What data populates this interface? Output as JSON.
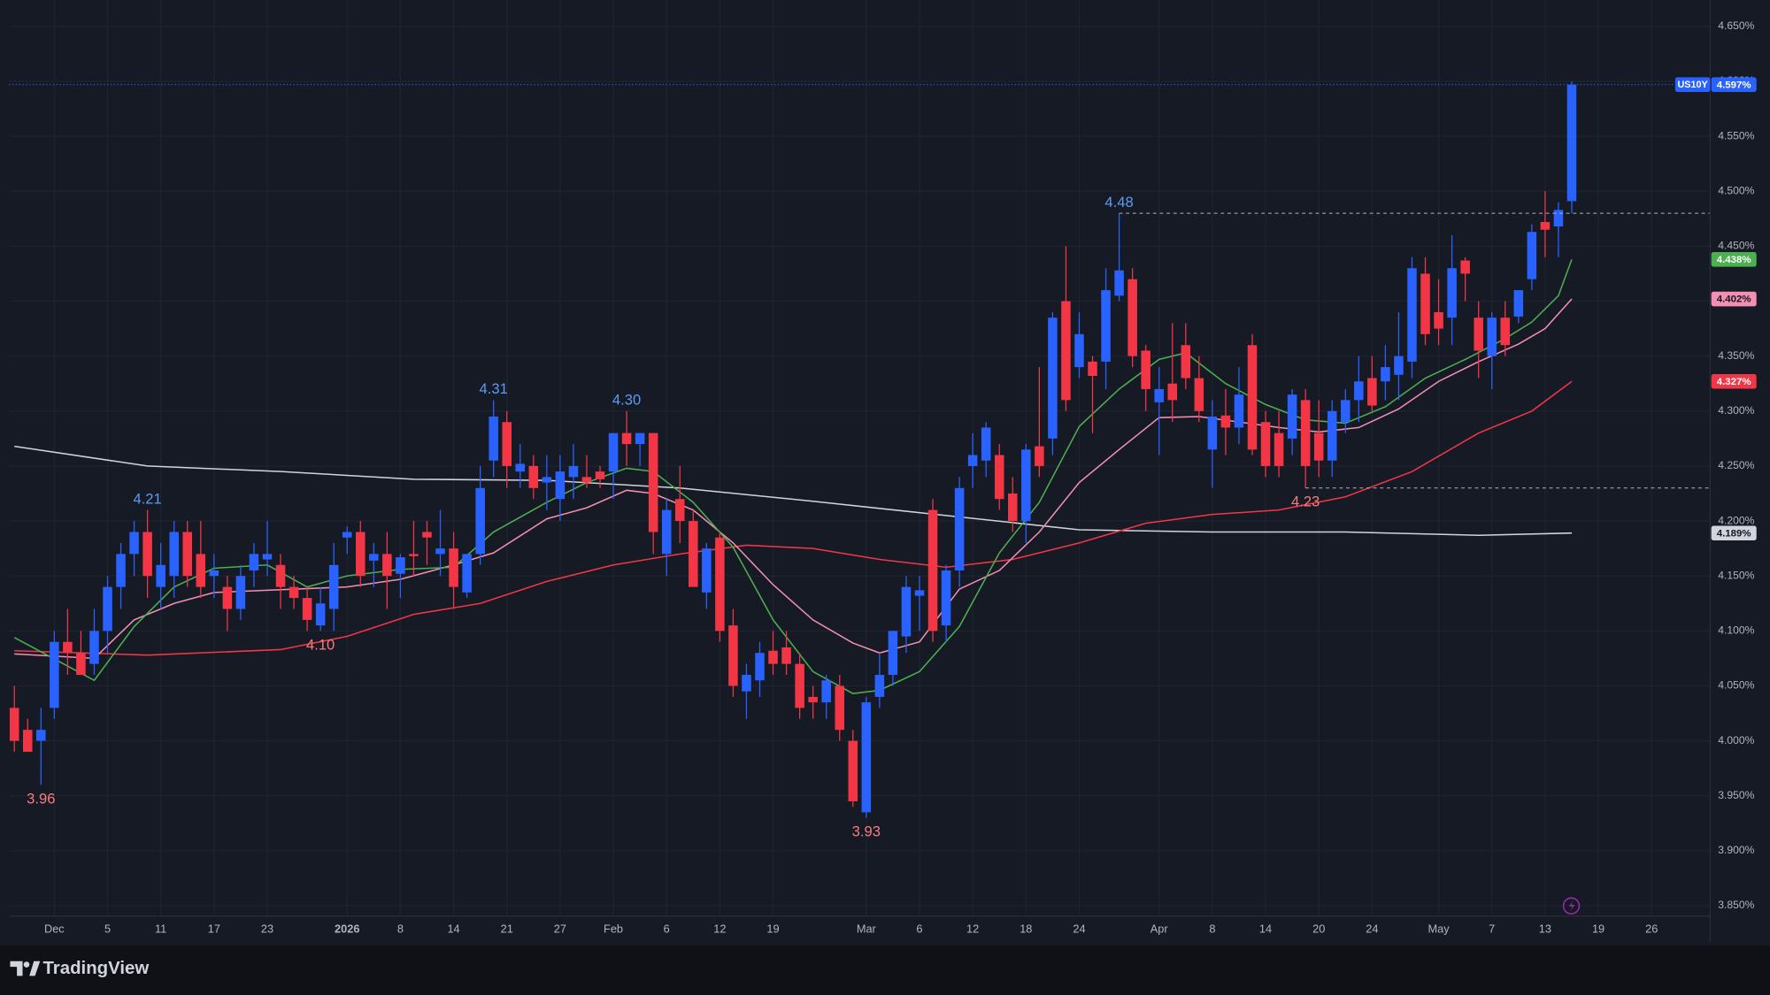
{
  "chart_data": {
    "type": "candlestick",
    "symbol": "US10Y",
    "up_color": "#2962ff",
    "down_color": "#f23645",
    "grid": true,
    "xlim": [
      -0.4,
      127.4
    ],
    "ylim": [
      3.817,
      4.674
    ],
    "xticks": [
      {
        "value": 3,
        "label": "Dec"
      },
      {
        "value": 7,
        "label": "5"
      },
      {
        "value": 11,
        "label": "11"
      },
      {
        "value": 15,
        "label": "17"
      },
      {
        "value": 19,
        "label": "23"
      },
      {
        "value": 25,
        "label": "2026"
      },
      {
        "value": 29,
        "label": "8"
      },
      {
        "value": 33,
        "label": "14"
      },
      {
        "value": 37,
        "label": "21"
      },
      {
        "value": 41,
        "label": "27"
      },
      {
        "value": 45,
        "label": "Feb"
      },
      {
        "value": 49,
        "label": "6"
      },
      {
        "value": 53,
        "label": "12"
      },
      {
        "value": 57,
        "label": "19"
      },
      {
        "value": 64,
        "label": "Mar"
      },
      {
        "value": 68,
        "label": "6"
      },
      {
        "value": 72,
        "label": "12"
      },
      {
        "value": 76,
        "label": "18"
      },
      {
        "value": 80,
        "label": "24"
      },
      {
        "value": 86,
        "label": "Apr"
      },
      {
        "value": 90,
        "label": "8"
      },
      {
        "value": 94,
        "label": "14"
      },
      {
        "value": 98,
        "label": "20"
      },
      {
        "value": 102,
        "label": "24"
      },
      {
        "value": 107,
        "label": "May"
      },
      {
        "value": 111,
        "label": "7"
      },
      {
        "value": 115,
        "label": "13"
      },
      {
        "value": 119,
        "label": "19"
      },
      {
        "value": 123,
        "label": "26"
      }
    ],
    "yticks": [
      {
        "value": 3.85,
        "label": "3.850%"
      },
      {
        "value": 3.9,
        "label": "3.900%"
      },
      {
        "value": 3.95,
        "label": "3.950%"
      },
      {
        "value": 4.0,
        "label": "4.000%"
      },
      {
        "value": 4.05,
        "label": "4.050%"
      },
      {
        "value": 4.1,
        "label": "4.100%"
      },
      {
        "value": 4.15,
        "label": "4.150%"
      },
      {
        "value": 4.2,
        "label": "4.200%"
      },
      {
        "value": 4.25,
        "label": "4.250%"
      },
      {
        "value": 4.3,
        "label": "4.300%"
      },
      {
        "value": 4.35,
        "label": "4.350%"
      },
      {
        "value": 4.4,
        "label": "4.400%"
      },
      {
        "value": 4.45,
        "label": "4.450%"
      },
      {
        "value": 4.5,
        "label": "4.500%"
      },
      {
        "value": 4.55,
        "label": "4.550%"
      },
      {
        "value": 4.6,
        "label": "4.600%"
      },
      {
        "value": 4.65,
        "label": "4.650%"
      }
    ],
    "open": [
      4.03,
      4.01,
      4.0,
      4.03,
      4.09,
      4.08,
      4.07,
      4.1,
      4.14,
      4.17,
      4.19,
      4.14,
      4.15,
      4.19,
      4.17,
      4.15,
      4.14,
      4.12,
      4.155,
      4.165,
      4.16,
      4.14,
      4.13,
      4.105,
      4.12,
      4.185,
      4.19,
      4.164,
      4.17,
      4.152,
      4.17,
      4.19,
      4.17,
      4.175,
      4.135,
      4.17,
      4.255,
      4.29,
      4.245,
      4.25,
      4.235,
      4.22,
      4.24,
      4.24,
      4.245,
      4.245,
      4.28,
      4.27,
      4.28,
      4.17,
      4.22,
      4.2,
      4.135,
      4.185,
      4.105,
      4.045,
      4.055,
      4.082,
      4.085,
      4.07,
      4.04,
      4.035,
      4.05,
      4.0,
      3.935,
      4.04,
      4.06,
      4.095,
      4.132,
      4.21,
      4.105,
      4.155,
      4.25,
      4.255,
      4.26,
      4.225,
      4.2,
      4.268,
      4.275,
      4.4,
      4.34,
      4.345,
      4.345,
      4.405,
      4.42,
      4.355,
      4.308,
      4.325,
      4.36,
      4.33,
      4.265,
      4.296,
      4.285,
      4.36,
      4.29,
      4.28,
      4.275,
      4.31,
      4.28,
      4.255,
      4.29,
      4.31,
      4.33,
      4.327,
      4.333,
      4.345,
      4.425,
      4.39,
      4.385,
      4.437,
      4.385,
      4.35,
      4.385,
      4.386,
      4.42,
      4.472,
      4.468,
      4.491
    ],
    "high": [
      4.05,
      4.02,
      4.03,
      4.1,
      4.12,
      4.1,
      4.12,
      4.15,
      4.18,
      4.2,
      4.21,
      4.18,
      4.2,
      4.2,
      4.2,
      4.17,
      4.15,
      4.16,
      4.18,
      4.2,
      4.17,
      4.15,
      4.14,
      4.14,
      4.18,
      4.195,
      4.2,
      4.18,
      4.19,
      4.17,
      4.2,
      4.2,
      4.21,
      4.19,
      4.17,
      4.25,
      4.31,
      4.3,
      4.27,
      4.26,
      4.26,
      4.26,
      4.27,
      4.26,
      4.25,
      4.28,
      4.3,
      4.28,
      4.28,
      4.22,
      4.25,
      4.21,
      4.18,
      4.19,
      4.12,
      4.07,
      4.09,
      4.1,
      4.1,
      4.08,
      4.05,
      4.06,
      4.06,
      4.01,
      4.04,
      4.08,
      4.1,
      4.15,
      4.15,
      4.22,
      4.16,
      4.24,
      4.28,
      4.29,
      4.27,
      4.24,
      4.27,
      4.34,
      4.39,
      4.45,
      4.39,
      4.35,
      4.43,
      4.48,
      4.43,
      4.36,
      4.34,
      4.38,
      4.38,
      4.35,
      4.31,
      4.32,
      4.34,
      4.37,
      4.3,
      4.3,
      4.32,
      4.32,
      4.31,
      4.31,
      4.32,
      4.35,
      4.35,
      4.36,
      4.39,
      4.44,
      4.44,
      4.42,
      4.46,
      4.44,
      4.4,
      4.39,
      4.4,
      4.41,
      4.47,
      4.5,
      4.49,
      4.6
    ],
    "low": [
      3.99,
      3.99,
      3.96,
      4.02,
      4.06,
      4.06,
      4.06,
      4.08,
      4.12,
      4.15,
      4.13,
      4.12,
      4.13,
      4.14,
      4.13,
      4.13,
      4.1,
      4.11,
      4.14,
      4.15,
      4.12,
      4.12,
      4.1,
      4.1,
      4.1,
      4.17,
      4.14,
      4.14,
      4.12,
      4.13,
      4.15,
      4.16,
      4.15,
      4.12,
      4.13,
      4.16,
      4.24,
      4.23,
      4.23,
      4.22,
      4.21,
      4.2,
      4.22,
      4.23,
      4.23,
      4.22,
      4.25,
      4.25,
      4.17,
      4.15,
      4.18,
      4.14,
      4.12,
      4.09,
      4.04,
      4.02,
      4.04,
      4.06,
      4.06,
      4.02,
      4.02,
      4.02,
      4.0,
      3.94,
      3.93,
      4.03,
      4.05,
      4.08,
      4.1,
      4.09,
      4.09,
      4.14,
      4.23,
      4.24,
      4.21,
      4.19,
      4.18,
      4.24,
      4.26,
      4.3,
      4.33,
      4.28,
      4.32,
      4.4,
      4.34,
      4.3,
      4.26,
      4.29,
      4.32,
      4.29,
      4.23,
      4.26,
      4.27,
      4.26,
      4.24,
      4.24,
      4.26,
      4.23,
      4.24,
      4.24,
      4.28,
      4.29,
      4.3,
      4.31,
      4.31,
      4.33,
      4.36,
      4.36,
      4.36,
      4.4,
      4.33,
      4.32,
      4.35,
      4.38,
      4.41,
      4.44,
      4.44,
      4.48
    ],
    "close": [
      4.0,
      3.99,
      4.01,
      4.09,
      4.08,
      4.06,
      4.1,
      4.14,
      4.17,
      4.19,
      4.15,
      4.16,
      4.19,
      4.15,
      4.14,
      4.155,
      4.12,
      4.15,
      4.17,
      4.17,
      4.14,
      4.13,
      4.11,
      4.125,
      4.16,
      4.19,
      4.15,
      4.17,
      4.15,
      4.167,
      4.168,
      4.185,
      4.175,
      4.14,
      4.17,
      4.23,
      4.295,
      4.25,
      4.252,
      4.23,
      4.24,
      4.245,
      4.25,
      4.235,
      4.238,
      4.28,
      4.27,
      4.28,
      4.19,
      4.21,
      4.2,
      4.14,
      4.175,
      4.1,
      4.05,
      4.06,
      4.08,
      4.07,
      4.07,
      4.03,
      4.035,
      4.055,
      4.01,
      3.945,
      4.035,
      4.06,
      4.1,
      4.14,
      4.137,
      4.1,
      4.155,
      4.23,
      4.26,
      4.285,
      4.22,
      4.2,
      4.265,
      4.25,
      4.385,
      4.31,
      4.37,
      4.332,
      4.41,
      4.428,
      4.35,
      4.32,
      4.32,
      4.31,
      4.33,
      4.3,
      4.295,
      4.285,
      4.315,
      4.265,
      4.25,
      4.25,
      4.315,
      4.25,
      4.255,
      4.3,
      4.31,
      4.327,
      4.305,
      4.34,
      4.35,
      4.43,
      4.37,
      4.375,
      4.43,
      4.425,
      4.355,
      4.385,
      4.36,
      4.41,
      4.463,
      4.465,
      4.483,
      4.597
    ],
    "price_line": {
      "value": 4.597,
      "label": "4.597%"
    },
    "moving_averages": [
      {
        "color": "#d1d4dc",
        "x": [
          0,
          10,
          20,
          30,
          40,
          50,
          60,
          70,
          80,
          90,
          100,
          110,
          117
        ],
        "values": [
          4.268,
          4.25,
          4.245,
          4.238,
          4.237,
          4.23,
          4.218,
          4.205,
          4.192,
          4.19,
          4.19,
          4.187,
          4.189
        ],
        "badge": {
          "value": 4.189,
          "label": "4.189%"
        }
      },
      {
        "color": "#f23645",
        "x": [
          0,
          10,
          20,
          25,
          30,
          35,
          40,
          45,
          50,
          55,
          60,
          65,
          70,
          75,
          80,
          85,
          90,
          95,
          100,
          105,
          110,
          114,
          117
        ],
        "values": [
          4.082,
          4.078,
          4.083,
          4.095,
          4.115,
          4.125,
          4.145,
          4.16,
          4.17,
          4.178,
          4.175,
          4.165,
          4.158,
          4.165,
          4.18,
          4.198,
          4.206,
          4.21,
          4.222,
          4.245,
          4.28,
          4.3,
          4.327
        ],
        "badge": {
          "value": 4.327,
          "label": "4.327%"
        }
      },
      {
        "color": "#f48fb1",
        "x": [
          0,
          6,
          9,
          12,
          15,
          19,
          25,
          29,
          33,
          36,
          40,
          43,
          46,
          48,
          51,
          54,
          57,
          60,
          63,
          65,
          68,
          71,
          74,
          77,
          80,
          83,
          86,
          89,
          92,
          95,
          98,
          101,
          104,
          107,
          110,
          113,
          115,
          117
        ],
        "values": [
          4.079,
          4.075,
          4.11,
          4.125,
          4.135,
          4.137,
          4.14,
          4.147,
          4.16,
          4.171,
          4.202,
          4.212,
          4.228,
          4.225,
          4.21,
          4.18,
          4.142,
          4.11,
          4.089,
          4.08,
          4.09,
          4.138,
          4.155,
          4.19,
          4.235,
          4.265,
          4.294,
          4.295,
          4.29,
          4.285,
          4.281,
          4.285,
          4.302,
          4.327,
          4.345,
          4.361,
          4.375,
          4.402
        ],
        "badge": {
          "value": 4.402,
          "label": "4.402%"
        }
      },
      {
        "color": "#4caf50",
        "x": [
          0,
          6,
          9,
          12,
          15,
          19,
          22,
          25,
          29,
          33,
          36,
          40,
          43,
          46,
          48,
          51,
          54,
          57,
          60,
          63,
          65,
          68,
          71,
          74,
          77,
          80,
          83,
          86,
          88,
          91,
          94,
          97,
          100,
          103,
          106,
          109,
          112,
          114,
          116,
          117
        ],
        "values": [
          4.094,
          4.055,
          4.104,
          4.14,
          4.157,
          4.16,
          4.14,
          4.15,
          4.156,
          4.158,
          4.19,
          4.217,
          4.235,
          4.248,
          4.245,
          4.217,
          4.176,
          4.11,
          4.063,
          4.043,
          4.046,
          4.063,
          4.104,
          4.171,
          4.217,
          4.286,
          4.32,
          4.347,
          4.353,
          4.325,
          4.306,
          4.292,
          4.289,
          4.304,
          4.33,
          4.347,
          4.366,
          4.381,
          4.405,
          4.438
        ],
        "badge": {
          "value": 4.438,
          "label": "4.438%"
        }
      }
    ],
    "high_color": "#5b9cf6",
    "low_color": "#f77c80",
    "annotations": [
      {
        "x": 2,
        "value": 3.96,
        "label": "3.96",
        "side": "below"
      },
      {
        "x": 10,
        "value": 4.21,
        "label": "4.21",
        "side": "above"
      },
      {
        "x": 23,
        "value": 4.1,
        "label": "4.10",
        "side": "below"
      },
      {
        "x": 36,
        "value": 4.31,
        "label": "4.31",
        "side": "above"
      },
      {
        "x": 46,
        "value": 4.3,
        "label": "4.30",
        "side": "above"
      },
      {
        "x": 64,
        "value": 3.93,
        "label": "3.93",
        "side": "below"
      },
      {
        "x": 83,
        "value": 4.48,
        "label": "4.48",
        "side": "above",
        "level_line": true
      },
      {
        "x": 97,
        "value": 4.23,
        "label": "4.23",
        "side": "below",
        "level_line": true
      }
    ]
  },
  "footer": {
    "brand": "TradingView"
  }
}
